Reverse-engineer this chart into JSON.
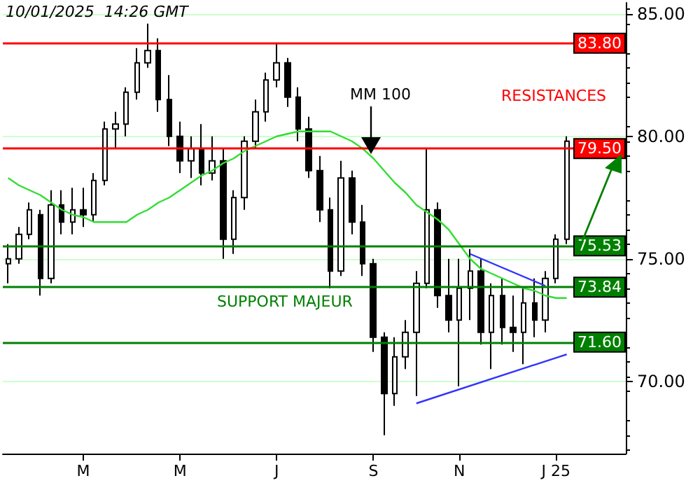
{
  "chart_data": {
    "type": "candlestick",
    "categories": [
      null,
      null,
      null,
      null,
      null,
      null,
      null,
      "M",
      null,
      null,
      null,
      null,
      null,
      null,
      null,
      null,
      "M",
      null,
      null,
      null,
      null,
      null,
      null,
      null,
      null,
      "J",
      null,
      null,
      null,
      null,
      null,
      null,
      null,
      null,
      "S",
      null,
      null,
      null,
      null,
      null,
      null,
      null,
      "N",
      null,
      null,
      null,
      null,
      null,
      null,
      null,
      null,
      "J 25",
      null,
      null,
      null,
      null,
      null,
      null
    ],
    "ohlc": [
      [
        74.8,
        75.6,
        74.0,
        75.0
      ],
      [
        75.0,
        76.3,
        74.8,
        76.0
      ],
      [
        76.0,
        77.3,
        75.8,
        77.0
      ],
      [
        76.8,
        77.0,
        73.5,
        74.2
      ],
      [
        74.2,
        77.8,
        74.0,
        77.2
      ],
      [
        77.2,
        77.8,
        76.0,
        76.5
      ],
      [
        76.5,
        77.9,
        76.0,
        77.0
      ],
      [
        77.0,
        77.9,
        76.3,
        76.8
      ],
      [
        76.8,
        78.5,
        76.5,
        78.2
      ],
      [
        78.2,
        80.6,
        78.0,
        80.3
      ],
      [
        80.3,
        81.0,
        79.5,
        80.5
      ],
      [
        80.5,
        82.0,
        80.0,
        81.8
      ],
      [
        81.8,
        83.6,
        81.5,
        83.0
      ],
      [
        83.0,
        84.6,
        82.8,
        83.5
      ],
      [
        83.5,
        84.0,
        81.0,
        81.5
      ],
      [
        81.5,
        82.5,
        79.6,
        80.0
      ],
      [
        80.0,
        80.6,
        78.5,
        79.0
      ],
      [
        79.0,
        80.0,
        78.3,
        79.5
      ],
      [
        79.5,
        80.5,
        78.0,
        78.5
      ],
      [
        78.5,
        80.0,
        78.2,
        79.0
      ],
      [
        79.0,
        79.5,
        75.0,
        75.8
      ],
      [
        75.8,
        77.8,
        75.2,
        77.5
      ],
      [
        77.5,
        80.0,
        77.0,
        79.8
      ],
      [
        79.8,
        81.5,
        79.5,
        81.0
      ],
      [
        81.0,
        82.6,
        80.6,
        82.3
      ],
      [
        82.3,
        83.8,
        82.0,
        83.0
      ],
      [
        83.0,
        83.2,
        81.2,
        81.6
      ],
      [
        81.6,
        82.0,
        79.8,
        80.3
      ],
      [
        80.3,
        80.8,
        78.3,
        78.6
      ],
      [
        78.6,
        79.2,
        76.5,
        77.0
      ],
      [
        77.0,
        77.5,
        73.8,
        74.5
      ],
      [
        74.5,
        79.0,
        74.3,
        78.3
      ],
      [
        78.3,
        78.6,
        76.0,
        76.5
      ],
      [
        76.5,
        77.2,
        74.3,
        74.8
      ],
      [
        74.8,
        75.0,
        71.2,
        71.8
      ],
      [
        71.8,
        72.0,
        67.8,
        69.5
      ],
      [
        69.5,
        71.8,
        69.0,
        71.0
      ],
      [
        71.0,
        72.5,
        70.5,
        72.0
      ],
      [
        72.0,
        74.5,
        69.4,
        74.0
      ],
      [
        74.0,
        79.5,
        73.8,
        77.0
      ],
      [
        77.0,
        77.3,
        73.0,
        73.5
      ],
      [
        73.5,
        75.0,
        72.0,
        72.5
      ],
      [
        72.5,
        75.0,
        69.8,
        73.8
      ],
      [
        73.8,
        75.4,
        72.5,
        74.5
      ],
      [
        74.5,
        75.0,
        71.5,
        72.0
      ],
      [
        72.0,
        74.0,
        70.5,
        73.5
      ],
      [
        73.5,
        74.2,
        71.5,
        72.2
      ],
      [
        72.2,
        73.5,
        71.2,
        72.0
      ],
      [
        72.0,
        73.8,
        70.7,
        73.2
      ],
      [
        73.2,
        74.2,
        71.8,
        72.5
      ],
      [
        72.5,
        74.5,
        72.0,
        74.2
      ],
      [
        74.2,
        76.0,
        74.0,
        75.8
      ],
      [
        75.8,
        80.0,
        75.6,
        79.8
      ],
      null,
      null,
      null,
      null,
      null
    ],
    "color": "#000000",
    "series": [
      {
        "type": "line",
        "color": "#33dd33",
        "values": [
          78.3,
          78.0,
          77.8,
          77.6,
          77.3,
          77.0,
          76.8,
          76.7,
          76.5,
          76.5,
          76.5,
          76.5,
          76.8,
          77.0,
          77.3,
          77.5,
          77.8,
          78.1,
          78.4,
          78.6,
          78.9,
          79.1,
          79.4,
          79.6,
          79.8,
          80.0,
          80.1,
          80.2,
          80.2,
          80.2,
          80.2,
          80.0,
          79.8,
          79.5,
          79.1,
          78.6,
          78.1,
          77.7,
          77.2,
          76.9,
          76.6,
          76.2,
          75.6,
          75.0,
          74.6,
          74.4,
          74.2,
          74.0,
          73.8,
          73.7,
          73.5,
          73.4,
          73.4,
          null,
          null,
          null,
          null,
          null
        ]
      },
      {
        "type": "line",
        "color": "#3333ff",
        "values": [
          null,
          null,
          null,
          null,
          null,
          null,
          null,
          null,
          null,
          null,
          null,
          null,
          null,
          null,
          null,
          null,
          null,
          null,
          null,
          null,
          null,
          null,
          null,
          null,
          null,
          null,
          null,
          null,
          null,
          null,
          null,
          null,
          null,
          null,
          null,
          null,
          null,
          null,
          69.1,
          null,
          null,
          null,
          null,
          null,
          null,
          null,
          null,
          null,
          null,
          null,
          null,
          null,
          71.1,
          null,
          null,
          null,
          null,
          null
        ]
      },
      {
        "type": "line",
        "color": "#3333ff",
        "values": [
          null,
          null,
          null,
          null,
          null,
          null,
          null,
          null,
          null,
          null,
          null,
          null,
          null,
          null,
          null,
          null,
          null,
          null,
          null,
          null,
          null,
          null,
          null,
          null,
          null,
          null,
          null,
          null,
          null,
          null,
          null,
          null,
          null,
          null,
          null,
          null,
          null,
          null,
          null,
          null,
          null,
          null,
          null,
          75.2,
          null,
          null,
          null,
          null,
          null,
          null,
          73.9,
          null,
          null,
          null,
          null,
          null,
          null,
          null
        ]
      }
    ],
    "ref_lines": [
      {
        "axis": "y",
        "value": 83.8,
        "label": "83.80",
        "color": "#ff0000"
      },
      {
        "axis": "y",
        "value": 79.5,
        "label": "79.50",
        "color": "#ff0000"
      },
      {
        "axis": "y",
        "value": 75.53,
        "label": "75.53",
        "color": "#008000"
      },
      {
        "axis": "y",
        "value": 73.84,
        "label": "73.84",
        "color": "#008000"
      },
      {
        "axis": "y",
        "value": 71.6,
        "label": "71.60",
        "color": "#008000"
      }
    ],
    "annotations": [
      "10/01/2025  14:26 GMT",
      "MM 100",
      "RESISTANCES",
      {
        "text": "SUPPORT MAJEUR",
        "y": 73.84
      }
    ],
    "ylim": [
      67.05,
      85.45
    ],
    "yticks": [
      {
        "value": 70,
        "label": "70.00"
      },
      {
        "value": 75,
        "label": "75.00"
      },
      {
        "value": 80,
        "label": "80.00"
      },
      {
        "value": 85,
        "label": "85.00"
      }
    ],
    "grid": "y",
    "marker": "none",
    "line_style": "solid"
  }
}
